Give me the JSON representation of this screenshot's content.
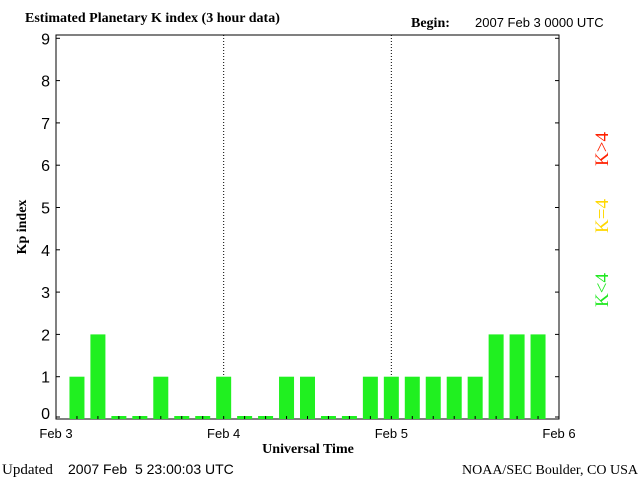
{
  "header": {
    "title": "Estimated Planetary K index (3 hour data)",
    "begin_label": "Begin:",
    "begin_value": "2007 Feb 3 0000 UTC"
  },
  "footer": {
    "updated_label": "Updated",
    "updated_value": "2007 Feb  5 23:00:03 UTC",
    "source": "NOAA/SEC Boulder, CO USA"
  },
  "legend": {
    "items": [
      {
        "text": "K>4",
        "color": "#ff2000"
      },
      {
        "text": "K=4",
        "color": "#ffd800"
      },
      {
        "text": "K<4",
        "color": "#20e820"
      }
    ]
  },
  "chart_data": {
    "type": "bar",
    "title": "Estimated Planetary K index (3 hour data)",
    "xlabel": "Universal Time",
    "ylabel": "Kp index",
    "ylim": [
      0,
      9
    ],
    "yticks": [
      "0",
      "1",
      "2",
      "3",
      "4",
      "5",
      "6",
      "7",
      "8",
      "9"
    ],
    "xticks": [
      "Feb 3",
      "Feb 4",
      "Feb 5",
      "Feb 6"
    ],
    "day_separators": [
      "Feb 4",
      "Feb 5"
    ],
    "bar_color": "#20f020",
    "values": [
      1,
      2,
      0,
      0,
      1,
      0,
      0,
      1,
      0,
      0,
      1,
      1,
      0,
      0,
      1,
      1,
      1,
      1,
      1,
      1,
      2,
      2,
      2
    ]
  }
}
